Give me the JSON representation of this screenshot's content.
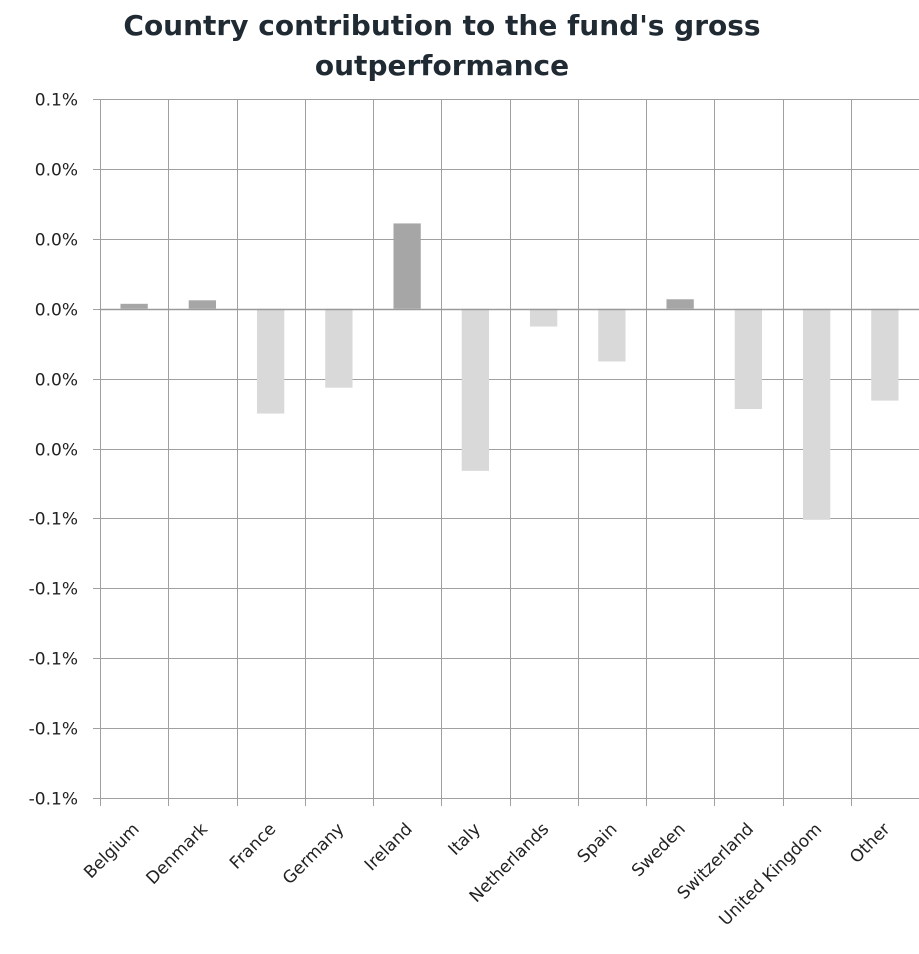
{
  "chart_data": {
    "type": "bar",
    "title_lines": [
      "Country contribution to the fund's gross",
      "outperformance"
    ],
    "xlabel": "",
    "ylabel": "",
    "categories": [
      "Belgium",
      "Denmark",
      "France",
      "Germany",
      "Ireland",
      "Italy",
      "Netherlands",
      "Spain",
      "Sweden",
      "Switzerland",
      "United Kingdom",
      "Other"
    ],
    "values": [
      0.0014,
      0.0024,
      -0.03,
      -0.0226,
      0.0244,
      -0.0464,
      -0.0051,
      -0.0151,
      0.0027,
      -0.0287,
      -0.0604,
      -0.0263
    ],
    "y_tick_values": [
      0.06,
      0.04,
      0.02,
      0.0,
      -0.02,
      -0.04,
      -0.06,
      -0.08,
      -0.1,
      -0.12,
      -0.14
    ],
    "y_tick_labels": [
      "0.1%",
      "0.0%",
      "0.0%",
      "0.0%",
      "0.0%",
      "0.0%",
      "-0.1%",
      "-0.1%",
      "-0.1%",
      "-0.1%",
      "-0.1%"
    ],
    "ylim": [
      -0.14,
      0.06
    ],
    "grid": true,
    "legend": "none",
    "colors": {
      "positive": "#a6a6a6",
      "negative": "#d9d9d9",
      "grid": "#a0a0a0",
      "axis": "#9a9a9a"
    }
  }
}
